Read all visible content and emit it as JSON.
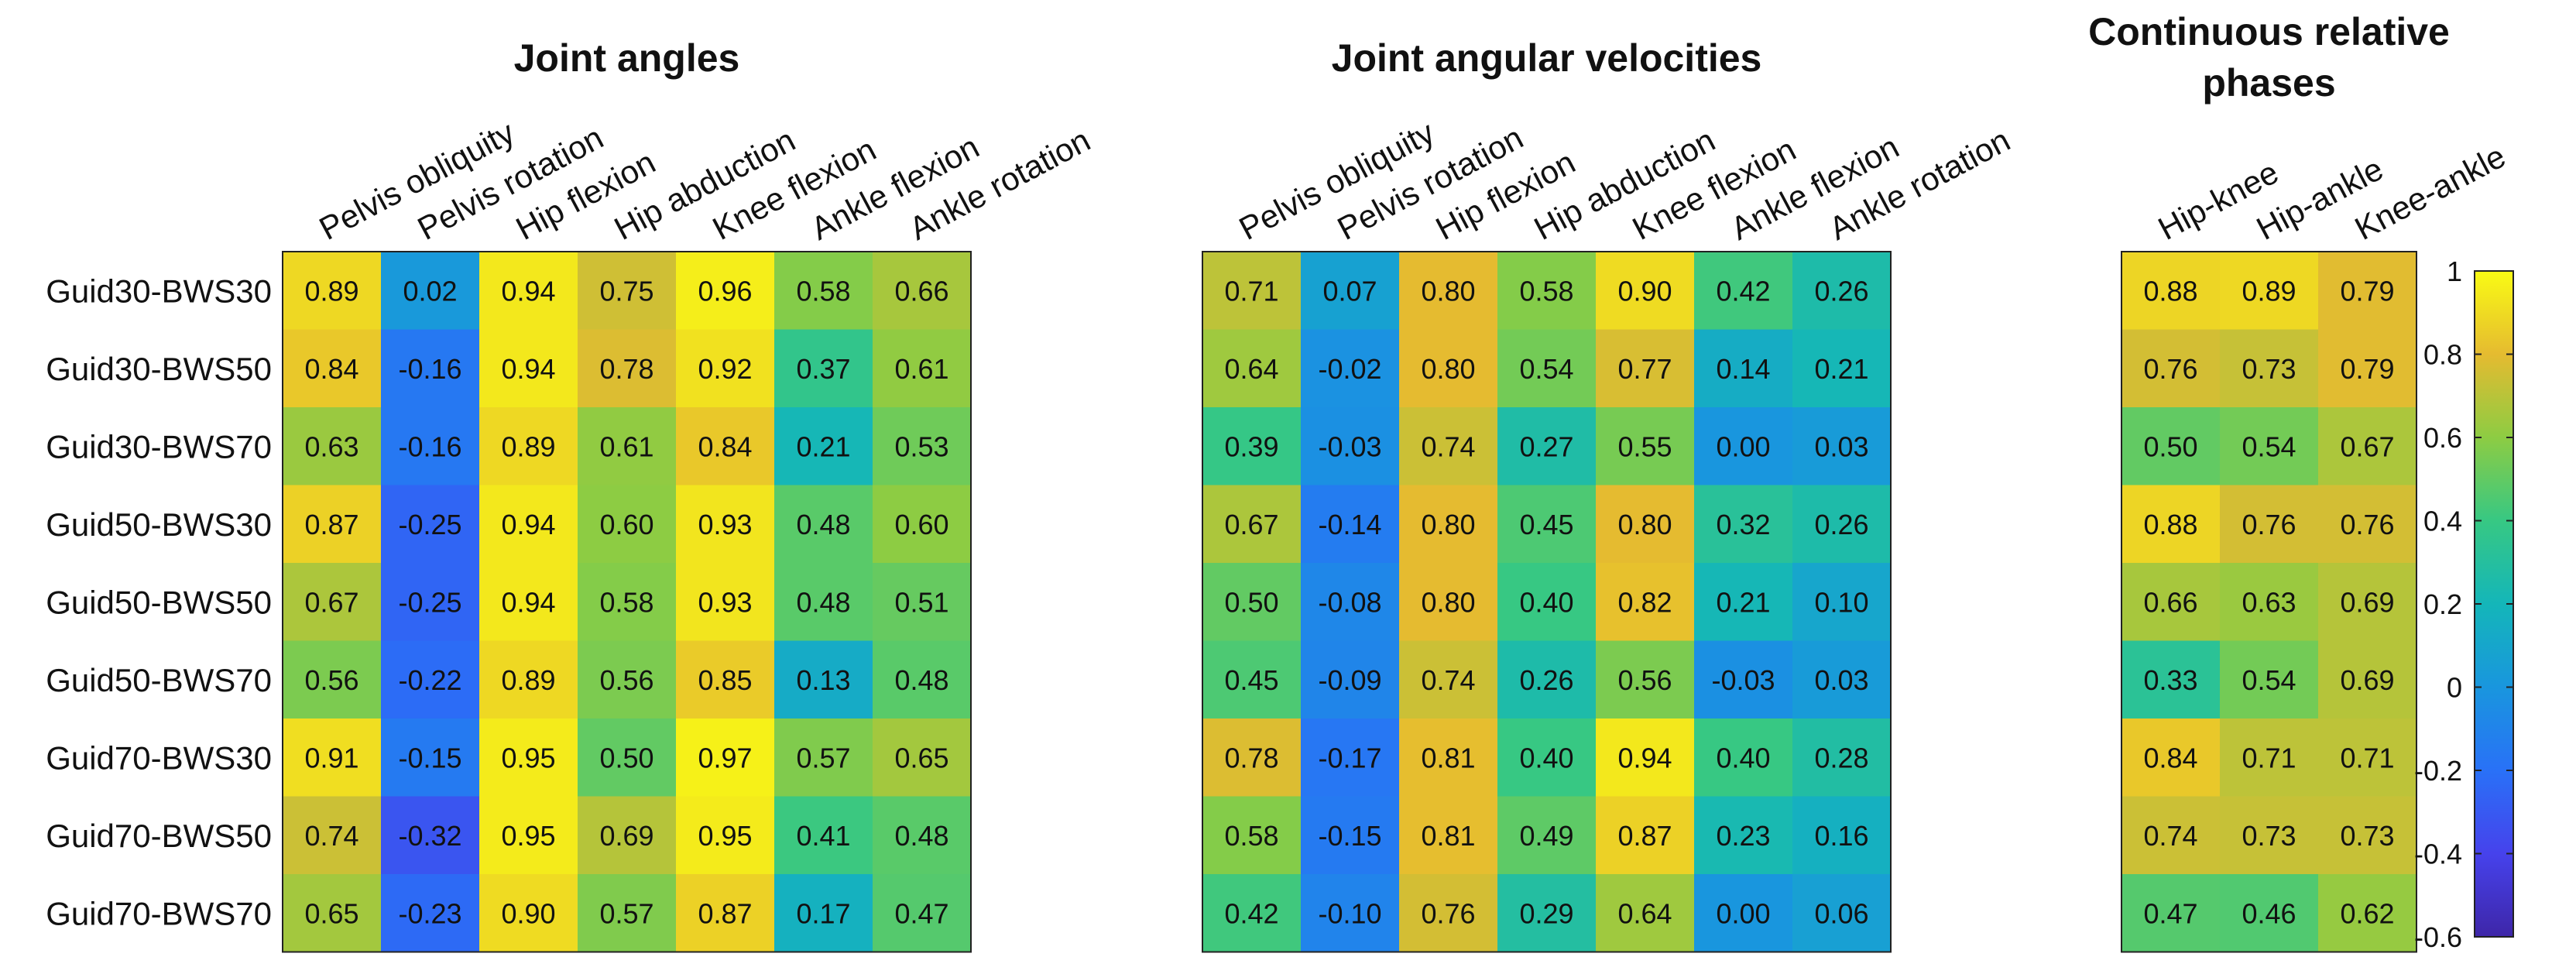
{
  "chart_data": {
    "type": "heatmap",
    "colormap": "parula",
    "color_range": [
      -0.6,
      1
    ],
    "row_labels": [
      "Guid30-BWS30",
      "Guid30-BWS50",
      "Guid30-BWS70",
      "Guid50-BWS30",
      "Guid50-BWS50",
      "Guid50-BWS70",
      "Guid70-BWS30",
      "Guid70-BWS50",
      "Guid70-BWS70"
    ],
    "panels": [
      {
        "title": "Joint angles",
        "columns": [
          "Pelvis obliquity",
          "Pelvis rotation",
          "Hip flexion",
          "Hip abduction",
          "Knee flexion",
          "Ankle flexion",
          "Ankle rotation"
        ],
        "values": [
          [
            0.89,
            0.02,
            0.94,
            0.75,
            0.96,
            0.58,
            0.66
          ],
          [
            0.84,
            -0.16,
            0.94,
            0.78,
            0.92,
            0.37,
            0.61
          ],
          [
            0.63,
            -0.16,
            0.89,
            0.61,
            0.84,
            0.21,
            0.53
          ],
          [
            0.87,
            -0.25,
            0.94,
            0.6,
            0.93,
            0.48,
            0.6
          ],
          [
            0.67,
            -0.25,
            0.94,
            0.58,
            0.93,
            0.48,
            0.51
          ],
          [
            0.56,
            -0.22,
            0.89,
            0.56,
            0.85,
            0.13,
            0.48
          ],
          [
            0.91,
            -0.15,
            0.95,
            0.5,
            0.97,
            0.57,
            0.65
          ],
          [
            0.74,
            -0.32,
            0.95,
            0.69,
            0.95,
            0.41,
            0.48
          ],
          [
            0.65,
            -0.23,
            0.9,
            0.57,
            0.87,
            0.17,
            0.47
          ]
        ]
      },
      {
        "title": "Joint angular velocities",
        "columns": [
          "Pelvis obliquity",
          "Pelvis rotation",
          "Hip flexion",
          "Hip abduction",
          "Knee flexion",
          "Ankle flexion",
          "Ankle rotation"
        ],
        "values": [
          [
            0.71,
            0.07,
            0.8,
            0.58,
            0.9,
            0.42,
            0.26
          ],
          [
            0.64,
            -0.02,
            0.8,
            0.54,
            0.77,
            0.14,
            0.21
          ],
          [
            0.39,
            -0.03,
            0.74,
            0.27,
            0.55,
            0.0,
            0.03
          ],
          [
            0.67,
            -0.14,
            0.8,
            0.45,
            0.8,
            0.32,
            0.26
          ],
          [
            0.5,
            -0.08,
            0.8,
            0.4,
            0.82,
            0.21,
            0.1
          ],
          [
            0.45,
            -0.09,
            0.74,
            0.26,
            0.56,
            -0.03,
            0.03
          ],
          [
            0.78,
            -0.17,
            0.81,
            0.4,
            0.94,
            0.4,
            0.28
          ],
          [
            0.58,
            -0.15,
            0.81,
            0.49,
            0.87,
            0.23,
            0.16
          ],
          [
            0.42,
            -0.1,
            0.76,
            0.29,
            0.64,
            0.0,
            0.06
          ]
        ]
      },
      {
        "title": "Continuous relative phases",
        "columns": [
          "Hip-knee",
          "Hip-ankle",
          "Knee-ankle"
        ],
        "values": [
          [
            0.88,
            0.89,
            0.79
          ],
          [
            0.76,
            0.73,
            0.79
          ],
          [
            0.5,
            0.54,
            0.67
          ],
          [
            0.88,
            0.76,
            0.76
          ],
          [
            0.66,
            0.63,
            0.69
          ],
          [
            0.33,
            0.54,
            0.69
          ],
          [
            0.84,
            0.71,
            0.71
          ],
          [
            0.74,
            0.73,
            0.73
          ],
          [
            0.47,
            0.46,
            0.62
          ]
        ]
      }
    ],
    "colorbar": {
      "ticks": [
        1,
        0.8,
        0.6,
        0.4,
        0.2,
        0,
        -0.2,
        -0.4,
        -0.6
      ],
      "tick_labels": [
        "1",
        "0.8",
        "0.6",
        "0.4",
        "0.2",
        "0",
        "-0.2",
        "-0.4",
        "-0.6"
      ]
    }
  }
}
